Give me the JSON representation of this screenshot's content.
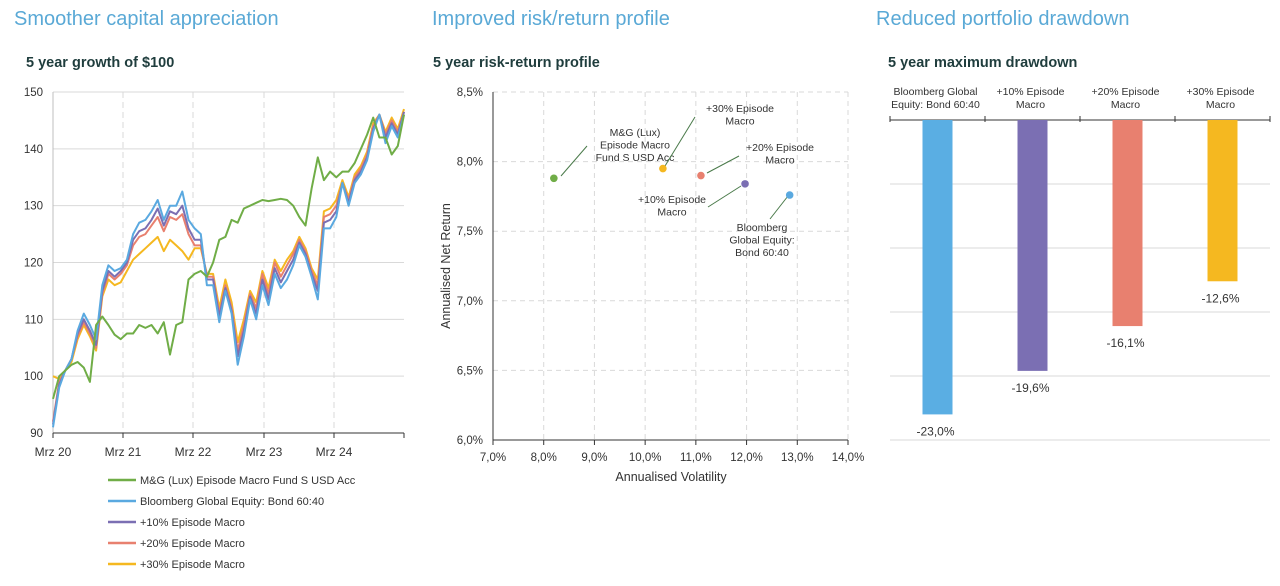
{
  "sections": [
    {
      "heading": "Smoother capital appreciation",
      "subtitle": "5 year growth of $100"
    },
    {
      "heading": "Improved risk/return profile",
      "subtitle": "5 year risk-return profile"
    },
    {
      "heading": "Reduced portfolio drawdown",
      "subtitle": "5 year maximum drawdown"
    }
  ],
  "chart_data": [
    {
      "type": "line",
      "title": "5 year growth of $100",
      "ylim": [
        90,
        150
      ],
      "yticks": [
        "90",
        "100",
        "110",
        "120",
        "130",
        "140",
        "150"
      ],
      "xticks": [
        "Mrz 20",
        "Mrz 21",
        "Mrz 22",
        "Mrz 23",
        "Mrz 24"
      ],
      "grid": true,
      "legend_position": "bottom",
      "colors": [
        "#70ad47",
        "#5aa9e0",
        "#7b6fb3",
        "#e8806f",
        "#f5b820"
      ],
      "series": [
        {
          "name": "M&G (Lux) Episode Macro Fund S USD Acc",
          "values": [
            96,
            100,
            101,
            102,
            102.5,
            101.5,
            99,
            109,
            110.5,
            109,
            107.3,
            106.5,
            107.5,
            107.5,
            109,
            108.5,
            109,
            107.5,
            109.5,
            103.8,
            109,
            109.5,
            117,
            118,
            118.5,
            117.5,
            120,
            124,
            124.5,
            127.5,
            127,
            129.5,
            130,
            130.5,
            131,
            130.8,
            131,
            131.2,
            131,
            130,
            128,
            126.5,
            133,
            138.5,
            134.5,
            136,
            135,
            136,
            136,
            137.5,
            140,
            142.5,
            145.5,
            142,
            142,
            139,
            140.5,
            146
          ]
        },
        {
          "name": "Bloomberg Global Equity: Bond 60:40",
          "values": [
            91,
            98,
            101,
            103,
            108,
            111,
            109,
            106.5,
            116,
            119.5,
            118.5,
            119,
            120.5,
            125,
            127,
            127.5,
            129,
            131,
            127.5,
            130,
            130,
            132.5,
            127.5,
            126,
            125,
            116,
            116,
            109.5,
            115,
            111,
            102,
            107,
            113.5,
            110,
            116,
            112.5,
            118,
            115.5,
            117,
            119.5,
            123,
            121,
            117.5,
            113.5,
            126,
            126,
            128,
            134,
            130,
            134,
            135.5,
            138,
            143,
            146,
            141,
            144,
            142,
            146
          ]
        },
        {
          "name": "+10% Episode Macro",
          "values": [
            91.5,
            98.5,
            101,
            103,
            107.5,
            110,
            108,
            105.5,
            115,
            118.5,
            117.5,
            118.5,
            120,
            124,
            125.5,
            126,
            127.5,
            129.5,
            126.5,
            129,
            128.5,
            130,
            126,
            124,
            124,
            117,
            117,
            110.5,
            115.5,
            111.5,
            103.5,
            108,
            114,
            111,
            117,
            113.5,
            119,
            116.5,
            118.5,
            120.5,
            123.5,
            121.5,
            118,
            115,
            127,
            127.5,
            129,
            134,
            130.5,
            134.5,
            136,
            138.5,
            143.5,
            146,
            142,
            144.5,
            142.5,
            146.5
          ]
        },
        {
          "name": "+20% Episode Macro",
          "values": [
            92,
            99,
            101,
            103,
            107,
            109.5,
            107.5,
            105,
            114.5,
            118,
            117,
            118,
            119.5,
            123,
            124.5,
            125,
            126.5,
            128,
            125.5,
            128,
            127.5,
            128.5,
            125,
            123,
            123,
            117.5,
            117.5,
            111,
            116,
            112,
            104.5,
            109,
            114.5,
            112,
            118,
            114.5,
            120,
            117.5,
            119.5,
            121.5,
            124,
            122,
            118.5,
            116,
            128,
            128.5,
            130,
            134,
            131,
            135,
            136.5,
            139,
            144,
            146,
            142.5,
            145,
            143,
            146.5
          ]
        },
        {
          "name": "+30% Episode Macro",
          "values": [
            100,
            99.5,
            101,
            102.5,
            106.5,
            109,
            107,
            104.5,
            114,
            117,
            116,
            116.5,
            118.5,
            120.5,
            121.5,
            122.5,
            123.5,
            124.5,
            122,
            124,
            123,
            122,
            120.5,
            122.5,
            122.5,
            118,
            118,
            112,
            117,
            113,
            106,
            110,
            115,
            113,
            118.5,
            115.5,
            120.5,
            118.5,
            120.5,
            122,
            124.5,
            122.5,
            119,
            117,
            129,
            129.5,
            131,
            134.5,
            131.5,
            135.5,
            137,
            139.5,
            144.5,
            146,
            143,
            145.5,
            143.5,
            147
          ]
        }
      ]
    },
    {
      "type": "scatter",
      "title": "5 year risk-return profile",
      "xlabel": "Annualised Volatility",
      "ylabel": "Annualised Net  Return",
      "xlim": [
        7.0,
        14.0
      ],
      "ylim": [
        6.0,
        8.5
      ],
      "xticks": [
        "7,0%",
        "8,0%",
        "9,0%",
        "10,0%",
        "11,0%",
        "12,0%",
        "13,0%",
        "14,0%"
      ],
      "yticks": [
        "6,0%",
        "6,5%",
        "7,0%",
        "7,5%",
        "8,0%",
        "8,5%"
      ],
      "grid": true,
      "points": [
        {
          "label": [
            "M&G (Lux)",
            "Episode Macro",
            "Fund S USD Acc"
          ],
          "x": 8.2,
          "y": 7.88,
          "color": "#70ad47"
        },
        {
          "label": [
            "+30% Episode",
            "Macro"
          ],
          "x": 10.35,
          "y": 7.95,
          "color": "#f5b820"
        },
        {
          "label": [
            "+20% Episode",
            "Macro"
          ],
          "x": 11.1,
          "y": 7.9,
          "color": "#e8806f"
        },
        {
          "label": [
            "+10% Episode",
            "Macro"
          ],
          "x": 11.97,
          "y": 7.84,
          "color": "#7b6fb3"
        },
        {
          "label": [
            "Bloomberg",
            "Global Equity:",
            "Bond 60:40"
          ],
          "x": 12.85,
          "y": 7.76,
          "color": "#5aa9e0"
        }
      ]
    },
    {
      "type": "bar",
      "title": "5 year maximum drawdown",
      "categories": [
        [
          "Bloomberg Global",
          "Equity: Bond 60:40"
        ],
        [
          "+10% Episode",
          "Macro"
        ],
        [
          "+20% Episode",
          "Macro"
        ],
        [
          "+30% Episode",
          "Macro"
        ]
      ],
      "values": [
        -23.0,
        -19.6,
        -16.1,
        -12.6
      ],
      "value_labels": [
        "-23,0%",
        "-19,6%",
        "-16,1%",
        "-12,6%"
      ],
      "colors": [
        "#5aaee3",
        "#7b6fb3",
        "#e8806f",
        "#f5b820"
      ],
      "ylim": [
        -25,
        0
      ],
      "grid": true
    }
  ]
}
